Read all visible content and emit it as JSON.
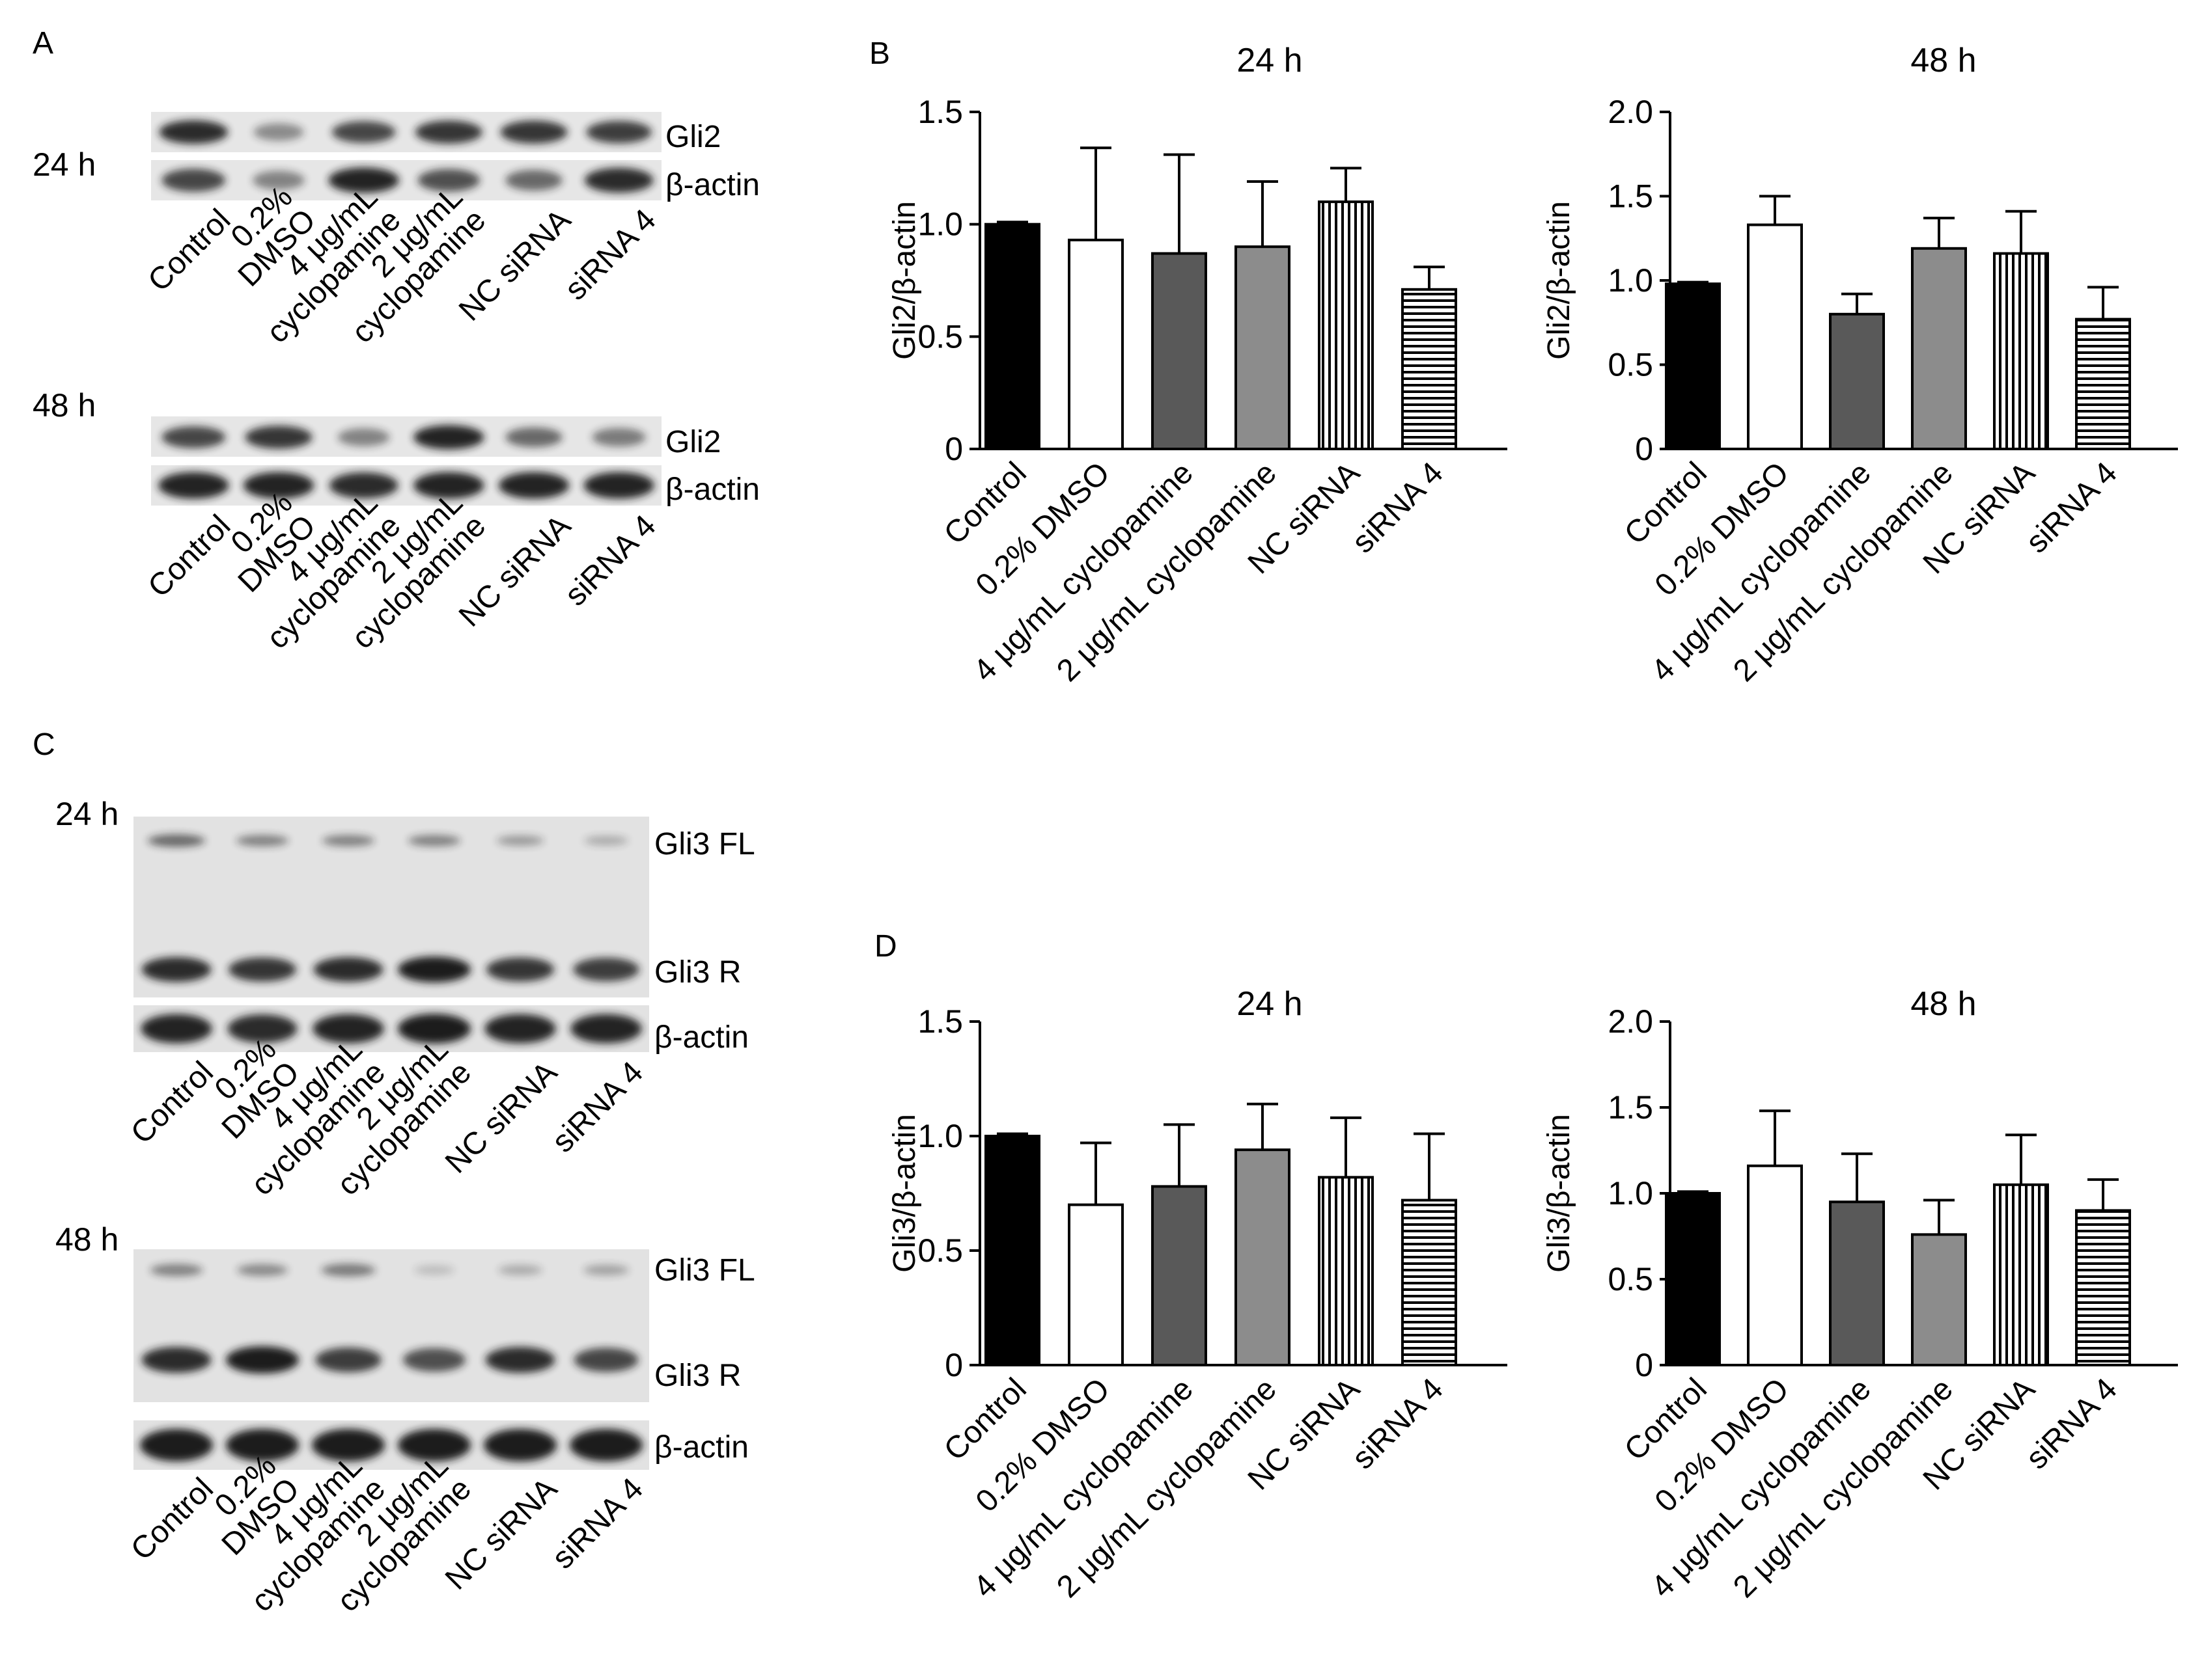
{
  "panels": {
    "A": {
      "letter": "A",
      "blots": [
        {
          "time": "24 h",
          "band_labels": [
            "Gli2",
            "β-actin"
          ],
          "lane_labels": [
            [
              "Control"
            ],
            [
              "0.2%",
              "DMSO"
            ],
            [
              "4 μg/mL",
              "cyclopamine"
            ],
            [
              "2 μg/mL",
              "cyclopamine"
            ],
            [
              "NC siRNA"
            ],
            [
              "siRNA 4"
            ]
          ]
        },
        {
          "time": "48 h",
          "band_labels": [
            "Gli2",
            "β-actin"
          ],
          "lane_labels": [
            [
              "Control"
            ],
            [
              "0.2%",
              "DMSO"
            ],
            [
              "4 μg/mL",
              "cyclopamine"
            ],
            [
              "2 μg/mL",
              "cyclopamine"
            ],
            [
              "NC siRNA"
            ],
            [
              "siRNA 4"
            ]
          ]
        }
      ]
    },
    "B": {
      "letter": "B"
    },
    "C": {
      "letter": "C",
      "blots": [
        {
          "time": "24 h",
          "band_labels": [
            "Gli3 FL",
            "Gli3 R",
            "β-actin"
          ],
          "lane_labels": [
            [
              "Control"
            ],
            [
              "0.2%",
              "DMSO"
            ],
            [
              "4 μg/mL",
              "cyclopamine"
            ],
            [
              "2 μg/mL",
              "cyclopamine"
            ],
            [
              "NC siRNA"
            ],
            [
              "siRNA 4"
            ]
          ]
        },
        {
          "time": "48 h",
          "band_labels": [
            "Gli3 FL",
            "Gli3 R",
            "β-actin"
          ],
          "lane_labels": [
            [
              "Control"
            ],
            [
              "0.2%",
              "DMSO"
            ],
            [
              "4 μg/mL",
              "cyclopamine"
            ],
            [
              "2 μg/mL",
              "cyclopamine"
            ],
            [
              "NC siRNA"
            ],
            [
              "siRNA 4"
            ]
          ]
        }
      ]
    },
    "D": {
      "letter": "D"
    }
  },
  "chart_data": [
    {
      "id": "B24",
      "panel": "B",
      "type": "bar",
      "title": "24 h",
      "xlabel": "",
      "ylabel": "Gli2/β-actin",
      "categories": [
        "Control",
        "0.2% DMSO",
        "4 μg/mL cyclopamine",
        "2 μg/mL cyclopamine",
        "NC siRNA",
        "siRNA 4"
      ],
      "values": [
        1.0,
        0.93,
        0.87,
        0.9,
        1.1,
        0.71
      ],
      "errors": [
        0.01,
        0.41,
        0.44,
        0.29,
        0.15,
        0.1
      ],
      "ylim": [
        0,
        1.5
      ],
      "yticks": [
        "0",
        "0.5",
        "1.0",
        "1.5"
      ],
      "ytick_values": [
        0,
        0.5,
        1.0,
        1.5
      ]
    },
    {
      "id": "B48",
      "panel": "B",
      "type": "bar",
      "title": "48 h",
      "xlabel": "",
      "ylabel": "Gli2/β-actin",
      "categories": [
        "Control",
        "0.2% DMSO",
        "4 μg/mL cyclopamine",
        "2 μg/mL cyclopamine",
        "NC siRNA",
        "siRNA 4"
      ],
      "values": [
        0.98,
        1.33,
        0.8,
        1.19,
        1.16,
        0.77
      ],
      "errors": [
        0.01,
        0.17,
        0.12,
        0.18,
        0.25,
        0.19
      ],
      "ylim": [
        0,
        2.0
      ],
      "yticks": [
        "0",
        "0.5",
        "1.0",
        "1.5",
        "2.0"
      ],
      "ytick_values": [
        0,
        0.5,
        1.0,
        1.5,
        2.0
      ]
    },
    {
      "id": "D24",
      "panel": "D",
      "type": "bar",
      "title": "24 h",
      "xlabel": "",
      "ylabel": "Gli3/β-actin",
      "categories": [
        "Control",
        "0.2% DMSO",
        "4 μg/mL cyclopamine",
        "2 μg/mL cyclopamine",
        "NC siRNA",
        "siRNA 4"
      ],
      "values": [
        1.0,
        0.7,
        0.78,
        0.94,
        0.82,
        0.72
      ],
      "errors": [
        0.01,
        0.27,
        0.27,
        0.2,
        0.26,
        0.29
      ],
      "ylim": [
        0,
        1.5
      ],
      "yticks": [
        "0",
        "0.5",
        "1.0",
        "1.5"
      ],
      "ytick_values": [
        0,
        0.5,
        1.0,
        1.5
      ]
    },
    {
      "id": "D48",
      "panel": "D",
      "type": "bar",
      "title": "48 h",
      "xlabel": "",
      "ylabel": "Gli3/β-actin",
      "categories": [
        "Control",
        "0.2% DMSO",
        "4 μg/mL cyclopamine",
        "2 μg/mL cyclopamine",
        "NC siRNA",
        "siRNA 4"
      ],
      "values": [
        1.0,
        1.16,
        0.95,
        0.76,
        1.05,
        0.9
      ],
      "errors": [
        0.01,
        0.32,
        0.28,
        0.2,
        0.29,
        0.18
      ],
      "ylim": [
        0,
        2.0
      ],
      "yticks": [
        "0",
        "0.5",
        "1.0",
        "1.5",
        "2.0"
      ],
      "ytick_values": [
        0,
        0.5,
        1.0,
        1.5,
        2.0
      ]
    }
  ],
  "bar_fills": [
    "#000000",
    "#ffffff",
    "#595959",
    "#8c8c8c",
    "vertical-stripes",
    "horizontal-stripes"
  ],
  "blot_colors": {
    "background": "#e6e6e6",
    "band": "#1a1a1a"
  },
  "blot_intensity": {
    "A24_gli2": [
      0.9,
      0.35,
      0.75,
      0.85,
      0.85,
      0.8
    ],
    "A24_actin": [
      0.75,
      0.4,
      0.95,
      0.7,
      0.55,
      0.9
    ],
    "A48_gli2": [
      0.75,
      0.85,
      0.4,
      0.95,
      0.55,
      0.45
    ],
    "A48_actin": [
      0.95,
      0.95,
      0.9,
      0.95,
      0.95,
      0.95
    ],
    "C24_fl": [
      0.55,
      0.4,
      0.4,
      0.4,
      0.25,
      0.15
    ],
    "C24_r": [
      0.9,
      0.85,
      0.9,
      1.0,
      0.85,
      0.8
    ],
    "C24_actin": [
      0.95,
      0.9,
      0.95,
      1.0,
      0.95,
      0.95
    ],
    "C48_fl": [
      0.4,
      0.35,
      0.45,
      0.05,
      0.15,
      0.2
    ],
    "C48_r": [
      0.9,
      1.0,
      0.8,
      0.7,
      0.9,
      0.75
    ],
    "C48_actin": [
      1.0,
      1.0,
      1.0,
      1.0,
      1.0,
      1.0
    ]
  }
}
